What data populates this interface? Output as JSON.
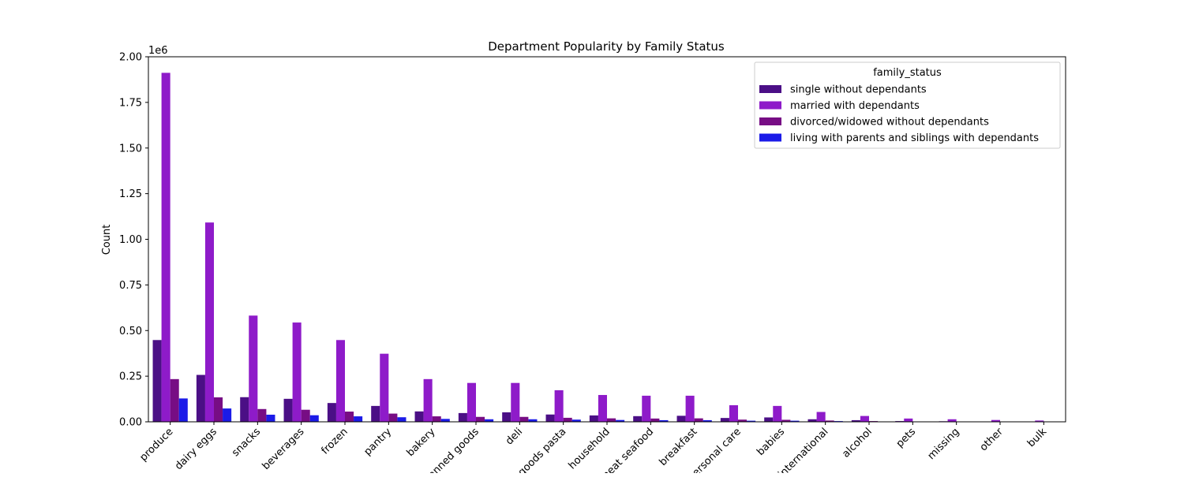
{
  "chart_data": {
    "type": "bar",
    "title": "Department Popularity by Family Status",
    "xlabel": "",
    "ylabel": "Count",
    "y_offset_label": "1e6",
    "ylim": [
      0,
      2000000
    ],
    "yticks": [
      0,
      250000,
      500000,
      750000,
      1000000,
      1250000,
      1500000,
      1750000,
      2000000
    ],
    "ytick_labels": [
      "0.00",
      "0.25",
      "0.50",
      "0.75",
      "1.00",
      "1.25",
      "1.50",
      "1.75",
      "2.00"
    ],
    "legend_title": "family_status",
    "legend_position": "top-right",
    "grid": false,
    "categories": [
      "produce",
      "dairy eggs",
      "snacks",
      "beverages",
      "frozen",
      "pantry",
      "bakery",
      "canned goods",
      "deli",
      "dry goods pasta",
      "household",
      "meat seafood",
      "breakfast",
      "personal care",
      "babies",
      "international",
      "alcohol",
      "pets",
      "missing",
      "other",
      "bulk"
    ],
    "series": [
      {
        "name": "single without dependants",
        "color": "#4b0f86",
        "values": [
          448000,
          257000,
          135000,
          126000,
          103000,
          87000,
          57000,
          48000,
          52000,
          40000,
          35000,
          31000,
          33000,
          21000,
          24000,
          14000,
          9000,
          4000,
          3000,
          2000,
          1000
        ]
      },
      {
        "name": "married with dependants",
        "color": "#8e1bc9",
        "values": [
          1912000,
          1092000,
          582000,
          544000,
          448000,
          373000,
          234000,
          213000,
          213000,
          173000,
          147000,
          143000,
          143000,
          91000,
          87000,
          54000,
          32000,
          18000,
          14000,
          10000,
          7000
        ]
      },
      {
        "name": "divorced/widowed without dependants",
        "color": "#770d84",
        "values": [
          234000,
          134000,
          70000,
          66000,
          56000,
          45000,
          30000,
          27000,
          27000,
          22000,
          19000,
          18000,
          19000,
          12000,
          11000,
          7000,
          4000,
          2000,
          2000,
          1000,
          1000
        ]
      },
      {
        "name": "living with parents and siblings with dependants",
        "color": "#1b1be8",
        "values": [
          128000,
          73000,
          39000,
          36000,
          30000,
          25000,
          16000,
          14000,
          14000,
          12000,
          10000,
          9000,
          9000,
          6000,
          6000,
          4000,
          2000,
          1000,
          1000,
          1000,
          500
        ]
      }
    ]
  }
}
